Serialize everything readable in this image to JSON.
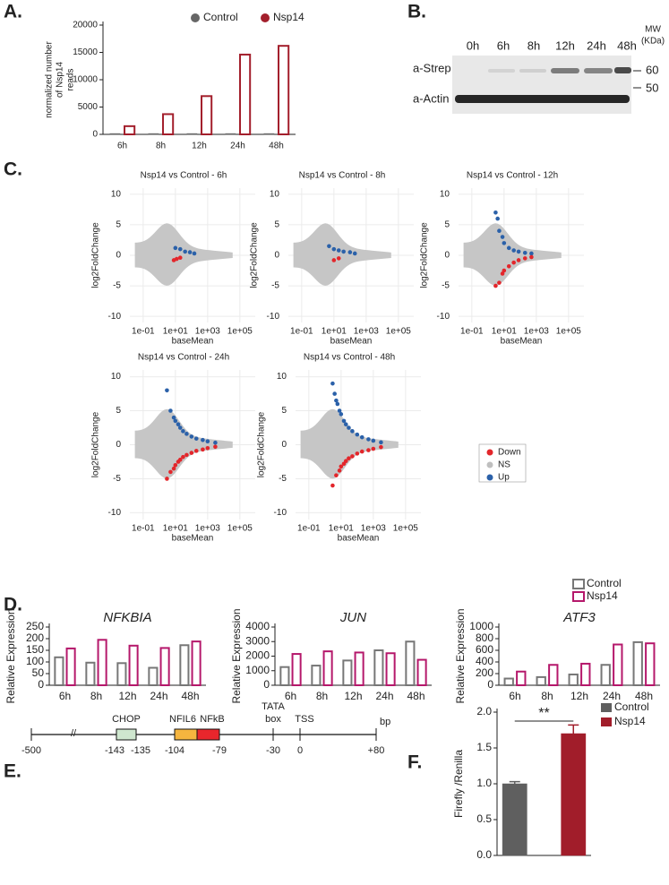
{
  "panel_labels": [
    "A.",
    "B.",
    "C.",
    "D.",
    "E.",
    "F."
  ],
  "chart_data": [
    {
      "type": "bar",
      "ylabel": [
        "normalized number",
        "of Nsp14",
        "reads"
      ],
      "categories": [
        "6h",
        "8h",
        "12h",
        "24h",
        "48h"
      ],
      "series": [
        {
          "name": "Control",
          "color": "#666666",
          "hollow": false,
          "values": [
            150,
            150,
            150,
            150,
            150
          ]
        },
        {
          "name": "Nsp14",
          "color": "#a31f2c",
          "hollow": true,
          "values": [
            1500,
            3700,
            7000,
            14600,
            16200
          ]
        }
      ],
      "ylim": [
        0,
        20000
      ],
      "yticks": [
        0,
        5000,
        10000,
        15000,
        20000
      ]
    },
    {
      "type": "scatter",
      "title": "Nsp14 vs Control - 6h",
      "xlabel": "baseMean",
      "ylabel": "log2FoldChange",
      "xscale": "log",
      "grid": true,
      "xlim": [
        0.015,
        900000
      ],
      "xticks": [
        {
          "value": 0.1,
          "label": "1e-01"
        },
        {
          "value": 10,
          "label": "1e+01"
        },
        {
          "value": 1000,
          "label": "1e+03"
        },
        {
          "value": 100000,
          "label": "1e+05"
        }
      ],
      "ylim": [
        -11,
        11
      ],
      "yticks": [
        -10,
        -5,
        0,
        5,
        10
      ],
      "series": [
        {
          "name": "Up",
          "color": "#2b61a9",
          "x": [
            10,
            20,
            40,
            80,
            150
          ],
          "values": [
            1.2,
            1.0,
            0.6,
            0.5,
            0.3
          ]
        },
        {
          "name": "Down",
          "color": "#e3262b",
          "x": [
            8,
            12,
            20
          ],
          "values": [
            -0.8,
            -0.6,
            -0.4
          ]
        }
      ]
    },
    {
      "type": "scatter",
      "title": "Nsp14 vs Control - 8h",
      "xlabel": "baseMean",
      "ylabel": "log2FoldChange",
      "xscale": "log",
      "grid": true,
      "xlim": [
        0.015,
        900000
      ],
      "xticks": [
        {
          "value": 0.1,
          "label": "1e-01"
        },
        {
          "value": 10,
          "label": "1e+01"
        },
        {
          "value": 1000,
          "label": "1e+03"
        },
        {
          "value": 100000,
          "label": "1e+05"
        }
      ],
      "ylim": [
        -11,
        11
      ],
      "yticks": [
        -10,
        -5,
        0,
        5,
        10
      ],
      "series": [
        {
          "name": "Up",
          "color": "#2b61a9",
          "x": [
            5,
            10,
            20,
            40,
            100,
            200
          ],
          "values": [
            1.5,
            1.0,
            0.8,
            0.6,
            0.5,
            0.3
          ]
        },
        {
          "name": "Down",
          "color": "#e3262b",
          "x": [
            10,
            20
          ],
          "values": [
            -0.8,
            -0.5
          ]
        }
      ]
    },
    {
      "type": "scatter",
      "title": "Nsp14 vs Control - 12h",
      "xlabel": "baseMean",
      "ylabel": "log2FoldChange",
      "xscale": "log",
      "grid": true,
      "xlim": [
        0.015,
        900000
      ],
      "xticks": [
        {
          "value": 0.1,
          "label": "1e-01"
        },
        {
          "value": 10,
          "label": "1e+01"
        },
        {
          "value": 1000,
          "label": "1e+03"
        },
        {
          "value": 100000,
          "label": "1e+05"
        }
      ],
      "ylim": [
        -11,
        11
      ],
      "yticks": [
        -10,
        -5,
        0,
        5,
        10
      ],
      "series": [
        {
          "name": "Up",
          "color": "#2b61a9",
          "x": [
            3,
            4,
            5,
            8,
            10,
            20,
            40,
            80,
            200,
            500
          ],
          "values": [
            7,
            6,
            4,
            3,
            2,
            1.2,
            0.8,
            0.6,
            0.4,
            0.3
          ]
        },
        {
          "name": "Down",
          "color": "#e3262b",
          "x": [
            3,
            5,
            8,
            10,
            20,
            40,
            80,
            200,
            500
          ],
          "values": [
            -5,
            -4.5,
            -3,
            -2.5,
            -1.8,
            -1.2,
            -0.8,
            -0.5,
            -0.3
          ]
        }
      ]
    },
    {
      "type": "scatter",
      "title": "Nsp14 vs Control - 24h",
      "xlabel": "baseMean",
      "ylabel": "log2FoldChange",
      "xscale": "log",
      "grid": true,
      "xlim": [
        0.015,
        900000
      ],
      "xticks": [
        {
          "value": 0.1,
          "label": "1e-01"
        },
        {
          "value": 10,
          "label": "1e+01"
        },
        {
          "value": 1000,
          "label": "1e+03"
        },
        {
          "value": 100000,
          "label": "1e+05"
        }
      ],
      "ylim": [
        -11,
        11
      ],
      "yticks": [
        -10,
        -5,
        0,
        5,
        10
      ],
      "series": [
        {
          "name": "Up",
          "color": "#2b61a9",
          "x": [
            3,
            5,
            8,
            10,
            15,
            20,
            30,
            50,
            100,
            200,
            500,
            1000,
            3000
          ],
          "values": [
            8,
            5,
            4,
            3.5,
            3,
            2.5,
            2,
            1.6,
            1.2,
            0.9,
            0.7,
            0.5,
            0.3
          ]
        },
        {
          "name": "Down",
          "color": "#e3262b",
          "x": [
            3,
            5,
            8,
            10,
            15,
            20,
            30,
            50,
            100,
            200,
            500,
            1000,
            3000
          ],
          "values": [
            -5,
            -4,
            -3.5,
            -3,
            -2.5,
            -2.2,
            -1.8,
            -1.5,
            -1.2,
            -0.9,
            -0.7,
            -0.5,
            -0.3
          ]
        }
      ]
    },
    {
      "type": "scatter",
      "title": "Nsp14 vs Control - 48h",
      "xlabel": "baseMean",
      "ylabel": "log2FoldChange",
      "xscale": "log",
      "grid": true,
      "xlim": [
        0.015,
        900000
      ],
      "xticks": [
        {
          "value": 0.1,
          "label": "1e-01"
        },
        {
          "value": 10,
          "label": "1e+01"
        },
        {
          "value": 1000,
          "label": "1e+03"
        },
        {
          "value": 100000,
          "label": "1e+05"
        }
      ],
      "ylim": [
        -11,
        11
      ],
      "yticks": [
        -10,
        -5,
        0,
        5,
        10
      ],
      "series": [
        {
          "name": "Up",
          "color": "#2b61a9",
          "x": [
            3,
            4,
            5,
            6,
            8,
            10,
            15,
            20,
            30,
            50,
            100,
            200,
            500,
            1000,
            3000
          ],
          "values": [
            9,
            7.5,
            6.5,
            6,
            5,
            4.5,
            3.5,
            3,
            2.5,
            2,
            1.5,
            1.1,
            0.8,
            0.6,
            0.35
          ]
        },
        {
          "name": "Down",
          "color": "#e3262b",
          "x": [
            3,
            5,
            8,
            10,
            15,
            20,
            30,
            50,
            100,
            200,
            500,
            1000,
            3000
          ],
          "values": [
            -6,
            -4.5,
            -3.8,
            -3.2,
            -2.8,
            -2.4,
            -2,
            -1.7,
            -1.3,
            -1,
            -0.8,
            -0.6,
            -0.35
          ]
        }
      ]
    },
    {
      "type": "bar",
      "title": "NFKBIA",
      "ylabel": "Relative Expression",
      "categories": [
        "6h",
        "8h",
        "12h",
        "24h",
        "48h"
      ],
      "series": [
        {
          "name": "Control",
          "color": "#777777",
          "hollow": true,
          "values": [
            120,
            97,
            95,
            75,
            172
          ]
        },
        {
          "name": "Nsp14",
          "color": "#b5186b",
          "hollow": true,
          "values": [
            158,
            195,
            170,
            160,
            188
          ]
        }
      ],
      "ylim": [
        0,
        250
      ],
      "yticks": [
        0,
        50,
        100,
        150,
        200,
        250
      ]
    },
    {
      "type": "bar",
      "title": "JUN",
      "ylabel": "Relative Expression",
      "categories": [
        "6h",
        "8h",
        "12h",
        "24h",
        "48h"
      ],
      "series": [
        {
          "name": "Control",
          "color": "#777777",
          "hollow": true,
          "values": [
            1250,
            1350,
            1700,
            2400,
            3000
          ]
        },
        {
          "name": "Nsp14",
          "color": "#b5186b",
          "hollow": true,
          "values": [
            2150,
            2330,
            2250,
            2200,
            1750
          ]
        }
      ],
      "ylim": [
        0,
        4000
      ],
      "yticks": [
        0,
        1000,
        2000,
        3000,
        4000
      ]
    },
    {
      "type": "bar",
      "title": "ATF3",
      "ylabel": "Relative Expression",
      "categories": [
        "6h",
        "8h",
        "12h",
        "24h",
        "48h"
      ],
      "series": [
        {
          "name": "Control",
          "color": "#777777",
          "hollow": true,
          "values": [
            115,
            140,
            185,
            350,
            740
          ]
        },
        {
          "name": "Nsp14",
          "color": "#b5186b",
          "hollow": true,
          "values": [
            235,
            350,
            370,
            700,
            720
          ]
        }
      ],
      "ylim": [
        0,
        1000
      ],
      "yticks": [
        0,
        200,
        400,
        600,
        800,
        1000
      ]
    },
    {
      "type": "bar",
      "ylabel": "Firefly /Renilla",
      "annotation": "**",
      "categories": [
        null
      ],
      "series": [
        {
          "name": "Control",
          "color": "#5f5f5f",
          "hollow": false,
          "values": [
            1.0
          ],
          "errors": [
            0.03
          ]
        },
        {
          "name": "Nsp14",
          "color": "#a11d2a",
          "hollow": false,
          "values": [
            1.7
          ],
          "errors": [
            0.12
          ]
        }
      ],
      "ylim": [
        0,
        2.0
      ],
      "yticks": [
        {
          "value": 0,
          "label": "0.0"
        },
        0.5,
        {
          "value": 1,
          "label": "1.0"
        },
        1.5,
        {
          "value": 2,
          "label": "2.0"
        }
      ]
    }
  ],
  "ma_legend": [
    {
      "label": "Down",
      "color": "#e3262b"
    },
    {
      "label": "NS",
      "color": "#bfbfbf"
    },
    {
      "label": "Up",
      "color": "#2b61a9"
    }
  ],
  "blot": {
    "lanes": [
      "0h",
      "6h",
      "8h",
      "12h",
      "24h",
      "48h"
    ],
    "rows": [
      "a-Strep",
      "a-Actin"
    ],
    "mw_title": [
      "MW",
      "(KDa)"
    ],
    "mw": [
      "60",
      "50"
    ]
  },
  "promoter": {
    "positions": [
      "-500",
      "-143",
      "-135",
      "-104",
      "-79",
      "-30",
      "0",
      "+80"
    ],
    "unit": "bp",
    "break": "//",
    "boxes": [
      "CHOP",
      "NFIL6",
      "NFkB"
    ],
    "tata": [
      "TATA",
      "box"
    ],
    "tss": "TSS"
  }
}
